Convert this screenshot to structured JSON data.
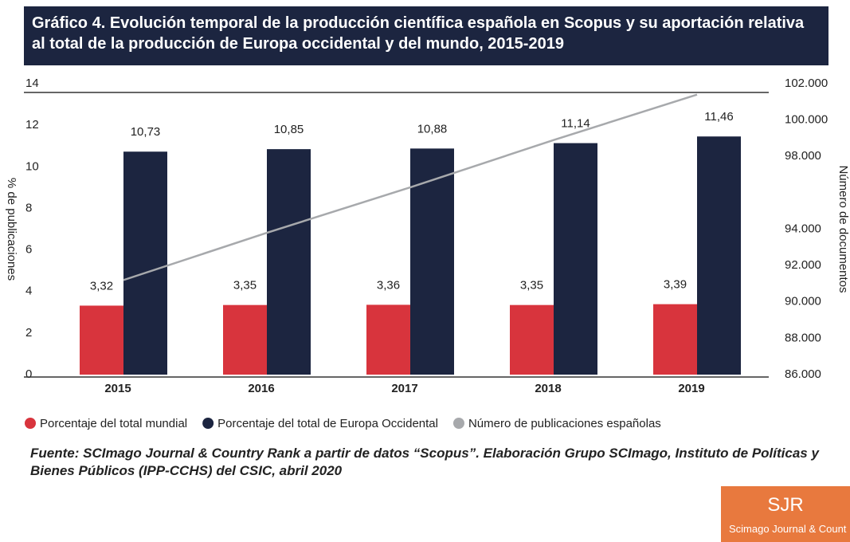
{
  "chart_data": {
    "type": "bar",
    "title": "Gráfico 4. Evolución temporal de la producción científica española en Scopus y su aportación relativa al total de la producción de Europa occidental y del mundo, 2015-2019",
    "categories": [
      "2015",
      "2016",
      "2017",
      "2018",
      "2019"
    ],
    "series": [
      {
        "name": "Porcentaje del total mundial",
        "color": "#d8343d",
        "values": [
          3.32,
          3.35,
          3.36,
          3.35,
          3.39
        ],
        "value_labels": [
          "3,32",
          "3,35",
          "3,36",
          "3,35",
          "3,39"
        ]
      },
      {
        "name": "Porcentaje del total de Europa Occidental",
        "color": "#1c2540",
        "values": [
          10.73,
          10.85,
          10.88,
          11.14,
          11.46
        ],
        "value_labels": [
          "10,73",
          "10,85",
          "10,88",
          "11,14",
          "11,46"
        ]
      },
      {
        "name": "Número de publicaciones españolas",
        "color": "#a7a9ac",
        "type": "line",
        "axis": "y2",
        "values": [
          91200,
          93800,
          96300,
          98900,
          101400
        ]
      }
    ],
    "ylabel": "% de publicaciones",
    "y2label": "Número de documentos",
    "ylim": [
      0,
      14
    ],
    "yticks": [
      0,
      2,
      4,
      6,
      8,
      10,
      12,
      14
    ],
    "y2lim": [
      86000,
      102000
    ],
    "y2ticks": [
      {
        "value": 86000,
        "label": "86.000"
      },
      {
        "value": 88000,
        "label": "88.000"
      },
      {
        "value": 90000,
        "label": "90.000"
      },
      {
        "value": 92000,
        "label": "92.000"
      },
      {
        "value": 94000,
        "label": "94.000"
      },
      {
        "value": 98000,
        "label": "98.000"
      },
      {
        "value": 100000,
        "label": "100.000"
      },
      {
        "value": 102000,
        "label": "102.000"
      }
    ],
    "grid": false,
    "legend": "bottom"
  },
  "source": "Fuente: SCImago Journal & Country Rank a partir de datos “Scopus”. Elaboración Grupo SCImago, Instituto de Políticas y Bienes Públicos (IPP-CCHS) del CSIC, abril 2020",
  "badge": {
    "title": "SJR",
    "subtitle": "Scimago Journal & Count"
  }
}
